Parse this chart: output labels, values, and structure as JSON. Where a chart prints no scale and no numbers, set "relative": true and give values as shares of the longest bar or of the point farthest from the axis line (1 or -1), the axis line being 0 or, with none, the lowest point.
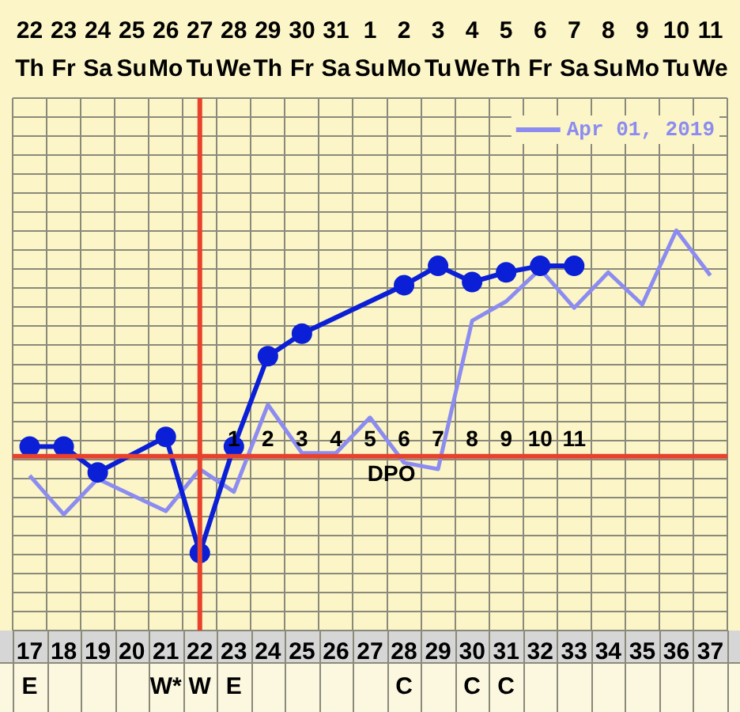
{
  "chart_data": {
    "type": "line",
    "relative": true,
    "categories": [
      "17\nE",
      "18",
      "19",
      "20",
      "21\nW*",
      "22\nW",
      "23\nE",
      "24",
      "25",
      "26",
      "27",
      "28\nC",
      "29",
      "30\nC",
      "31\nC",
      "32",
      "33",
      "34",
      "35",
      "36",
      "37"
    ],
    "series": [
      {
        "color": "#0a1fd6",
        "marker": "circle",
        "values": [
          0.33,
          0.33,
          0.25,
          null,
          0.36,
          0,
          0.33,
          0.61,
          0.68,
          null,
          null,
          0.83,
          0.89,
          0.84,
          0.87,
          0.89,
          0.89,
          null,
          null,
          null,
          null
        ]
      },
      {
        "name": "Apr 01, 2019",
        "color": "#8c8cf0",
        "marker": "none",
        "values": [
          0.24,
          0.12,
          0.23,
          0.18,
          0.13,
          0.26,
          0.19,
          0.46,
          0.31,
          0.31,
          0.42,
          0.28,
          0.26,
          0.72,
          0.78,
          0.88,
          0.76,
          0.87,
          0.77,
          1,
          0.86
        ]
      }
    ],
    "ref_lines": [
      {
        "axis": "x",
        "value": "22\nW",
        "color": "#e8412c"
      },
      {
        "axis": "y",
        "value": 0.3,
        "label": "DPO",
        "color": "#e8412c"
      }
    ],
    "annotations": [
      "22\nTh",
      "23\nFr",
      "24\nSa",
      "25\nSu",
      "26\nMo",
      "27\nTu",
      "28\nWe",
      "29\nTh",
      "30\nFr",
      "31\nSa",
      "1\nSu",
      "2\nMo",
      "3\nTu",
      "4\nWe",
      "5\nTh",
      "6\nFr",
      "7\nSa",
      "8\nSu",
      "9\nMo",
      "10\nTu",
      "11\nWe",
      {
        "text": "1",
        "x": "23\nE",
        "y": 0.3
      },
      {
        "text": "2",
        "x": "24",
        "y": 0.3
      },
      {
        "text": "3",
        "x": "25",
        "y": 0.3
      },
      {
        "text": "4",
        "x": "26",
        "y": 0.3
      },
      {
        "text": "5",
        "x": "27",
        "y": 0.3
      },
      {
        "text": "6",
        "x": "28\nC",
        "y": 0.3
      },
      {
        "text": "7",
        "x": "29",
        "y": 0.3
      },
      {
        "text": "8",
        "x": "30\nC",
        "y": 0.3
      },
      {
        "text": "9",
        "x": "31\nC",
        "y": 0.3
      },
      {
        "text": "10",
        "x": "32",
        "y": 0.3
      },
      {
        "text": "11",
        "x": "33",
        "y": 0.3
      }
    ],
    "grid": true,
    "legend": "top right",
    "tick_labels": "x"
  }
}
